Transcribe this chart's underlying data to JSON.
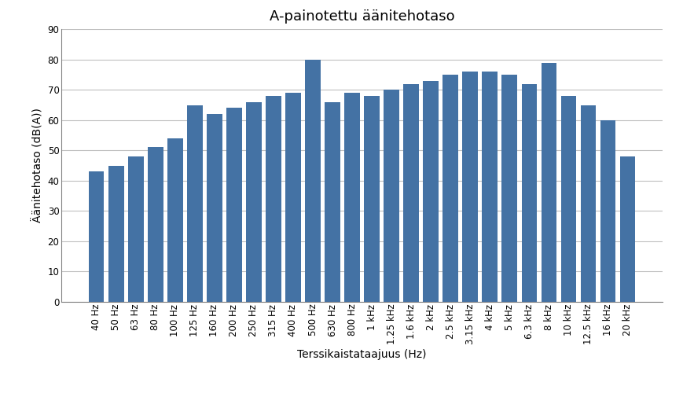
{
  "title": "A-painotettu äänitehotaso",
  "xlabel": "Terssikaistataajuus (Hz)",
  "ylabel": "Äänitehotaso (dB(A))",
  "categories": [
    "40 Hz",
    "50 Hz",
    "63 Hz",
    "80 Hz",
    "100 Hz",
    "125 Hz",
    "160 Hz",
    "200 Hz",
    "250 Hz",
    "315 Hz",
    "400 Hz",
    "500 Hz",
    "630 Hz",
    "800 Hz",
    "1 kHz",
    "1.25 kHz",
    "1.6 kHz",
    "2 kHz",
    "2.5 kHz",
    "3.15 kHz",
    "4 kHz",
    "5 kHz",
    "6.3 kHz",
    "8 kHz",
    "10 kHz",
    "12.5 kHz",
    "16 kHz",
    "20 kHz"
  ],
  "values": [
    43,
    45,
    48,
    51,
    54,
    65,
    62,
    64,
    66,
    68,
    69,
    80,
    66,
    69,
    68,
    70,
    72,
    73,
    75,
    76,
    76,
    75,
    72,
    79,
    68,
    65,
    60,
    48
  ],
  "bar_color": "#4472a4",
  "ylim": [
    0,
    90
  ],
  "yticks": [
    0,
    10,
    20,
    30,
    40,
    50,
    60,
    70,
    80,
    90
  ],
  "background_color": "#ffffff",
  "grid_color": "#bfbfbf",
  "title_fontsize": 13,
  "label_fontsize": 10,
  "tick_fontsize": 8.5,
  "bar_width": 0.78
}
